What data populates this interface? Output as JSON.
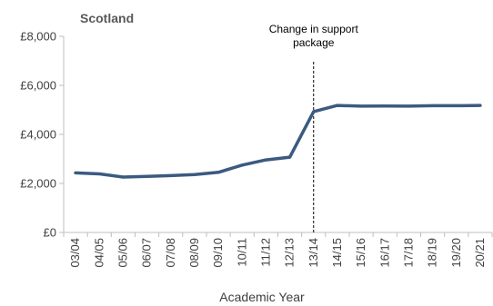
{
  "chart_data": {
    "type": "line",
    "title": "Scotland",
    "xlabel": "Academic Year",
    "ylabel": "",
    "categories": [
      "03/04",
      "04/05",
      "05/06",
      "06/07",
      "07/08",
      "08/09",
      "09/10",
      "10/11",
      "11/12",
      "12/13",
      "13/14",
      "14/15",
      "15/16",
      "16/17",
      "17/18",
      "18/19",
      "19/20",
      "20/21"
    ],
    "series": [
      {
        "values": [
          2430,
          2390,
          2260,
          2290,
          2320,
          2360,
          2450,
          2750,
          2960,
          3070,
          4930,
          5180,
          5150,
          5160,
          5150,
          5170,
          5170,
          5180
        ]
      }
    ],
    "ylim": [
      0,
      8000
    ],
    "yticks": [
      0,
      2000,
      4000,
      6000,
      8000
    ],
    "ytick_labels": [
      "£0",
      "£2,000",
      "£4,000",
      "£6,000",
      "£8,000"
    ],
    "grid": false,
    "legend": "none",
    "annotation": {
      "text_lines": [
        "Change in support",
        "package"
      ],
      "at_category": "13/14",
      "style": "dashed-vertical-line"
    },
    "colors": {
      "line": "#3b5a80",
      "axis": "#bfbfbf",
      "annotation_line": "#000000"
    }
  }
}
